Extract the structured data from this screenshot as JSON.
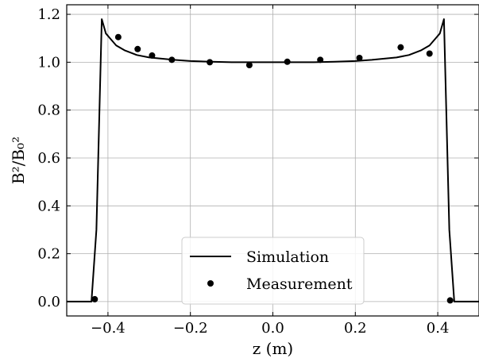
{
  "chart_data": {
    "type": "line",
    "title": "",
    "xlabel": "z (m)",
    "ylabel": "B²/B₀²",
    "xlim": [
      -0.5,
      0.5
    ],
    "ylim": [
      -0.06,
      1.24
    ],
    "grid": true,
    "legend_position": "bottom-center",
    "x_ticks": [
      -0.4,
      -0.2,
      0.0,
      0.2,
      0.4
    ],
    "x_tick_labels": [
      "−0.4",
      "−0.2",
      "0.0",
      "0.2",
      "0.4"
    ],
    "y_ticks": [
      0.0,
      0.2,
      0.4,
      0.6,
      0.8,
      1.0,
      1.2
    ],
    "y_tick_labels": [
      "0.0",
      "0.2",
      "0.4",
      "0.6",
      "0.8",
      "1.0",
      "1.2"
    ],
    "series": [
      {
        "name": "Simulation",
        "kind": "line",
        "color": "#000000",
        "x": [
          -0.5,
          -0.44,
          -0.428,
          -0.415,
          -0.405,
          -0.395,
          -0.38,
          -0.36,
          -0.33,
          -0.3,
          -0.27,
          -0.24,
          -0.2,
          -0.15,
          -0.1,
          -0.05,
          0.0,
          0.05,
          0.1,
          0.15,
          0.2,
          0.24,
          0.27,
          0.3,
          0.33,
          0.36,
          0.38,
          0.395,
          0.405,
          0.415,
          0.428,
          0.44,
          0.5
        ],
        "y": [
          0.0,
          0.0,
          0.3,
          1.18,
          1.12,
          1.1,
          1.07,
          1.05,
          1.03,
          1.02,
          1.015,
          1.01,
          1.005,
          1.002,
          1.0,
          1.0,
          1.0,
          1.0,
          1.0,
          1.002,
          1.005,
          1.01,
          1.015,
          1.02,
          1.03,
          1.05,
          1.07,
          1.1,
          1.12,
          1.18,
          0.3,
          0.0,
          0.0
        ]
      },
      {
        "name": "Measurement",
        "kind": "scatter",
        "color": "#000000",
        "x": [
          -0.432,
          -0.375,
          -0.328,
          -0.293,
          -0.245,
          -0.153,
          -0.057,
          0.035,
          0.115,
          0.21,
          0.31,
          0.38,
          0.43
        ],
        "y": [
          0.01,
          1.105,
          1.055,
          1.028,
          1.01,
          1.0,
          0.988,
          1.002,
          1.01,
          1.018,
          1.062,
          1.036,
          0.005
        ]
      }
    ]
  }
}
